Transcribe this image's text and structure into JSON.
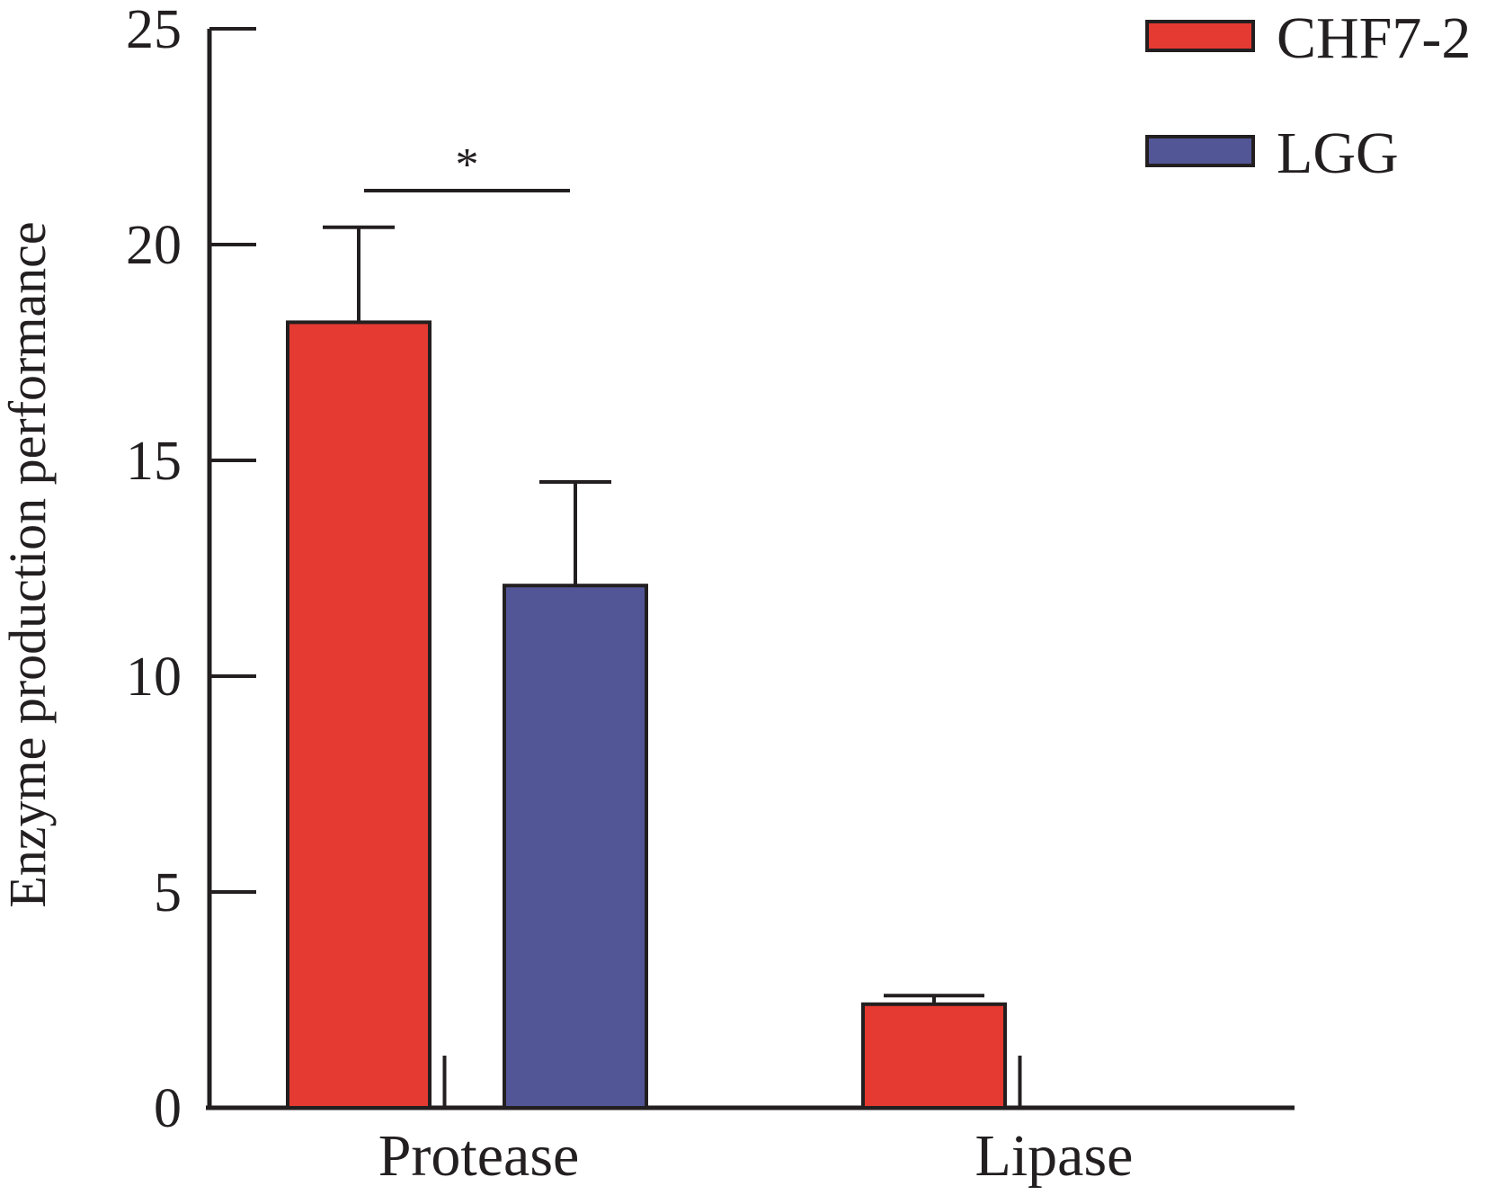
{
  "chart_data": {
    "type": "bar",
    "categories": [
      "Protease",
      "Lipase"
    ],
    "series": [
      {
        "name": "CHF7-2",
        "values": [
          18.2,
          2.4
        ],
        "errors": [
          2.2,
          0.2
        ]
      },
      {
        "name": "LGG",
        "values": [
          12.1,
          0
        ],
        "errors": [
          2.4,
          0
        ]
      }
    ],
    "xlabel": "",
    "ylabel": "Enzyme production performance",
    "ylim": [
      0,
      25
    ],
    "yticks": [
      "0",
      "5",
      "10",
      "15",
      "20",
      "25"
    ],
    "significance": [
      {
        "category": "Protease",
        "label": "*"
      }
    ],
    "legend": {
      "position": "top-right"
    },
    "grid": false,
    "colors": {
      "CHF7-2": "#e43a31",
      "LGG": "#525696",
      "axis": "#231f20"
    }
  }
}
